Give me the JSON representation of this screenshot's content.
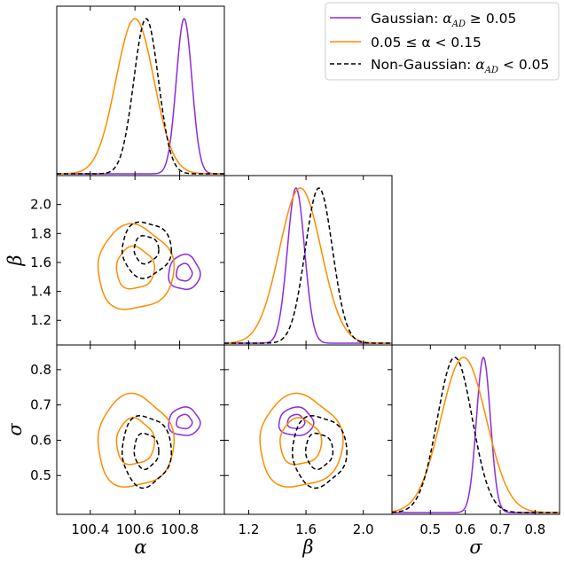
{
  "chart_data": {
    "type": "corner",
    "parameters": [
      "α",
      "β",
      "σ"
    ],
    "axes": {
      "alpha": {
        "label": "α",
        "range": [
          100.25,
          101.0
        ],
        "ticks": [
          100.4,
          100.6,
          100.8
        ],
        "tick_labels": [
          "100.4",
          "100.6",
          "100.8"
        ]
      },
      "beta": {
        "label": "β",
        "range": [
          1.03,
          2.2
        ],
        "ticks": [
          1.2,
          1.6,
          2.0
        ],
        "tick_labels": [
          "1.2",
          "1.6",
          "2.0"
        ],
        "y_ticks": [
          1.2,
          1.4,
          1.6,
          1.8,
          2.0
        ],
        "y_tick_labels": [
          "1.2",
          "1.4",
          "1.6",
          "1.8",
          "2.0"
        ]
      },
      "sigma": {
        "label": "σ",
        "range": [
          0.39,
          0.87
        ],
        "ticks": [
          0.5,
          0.6,
          0.7,
          0.8
        ],
        "tick_labels": [
          "0.5",
          "0.6",
          "0.7",
          "0.8"
        ]
      }
    },
    "legend": {
      "placement": "top-right",
      "entries": [
        {
          "key": "gaussian",
          "prefix": "Gaussian: ",
          "sym": "α",
          "sub": "AD",
          "rel": " ≥ ",
          "num": "0.05"
        },
        {
          "key": "mid",
          "text": "0.05 ≤ α < 0.15"
        },
        {
          "key": "nongaussian",
          "prefix": "Non-Gaussian: ",
          "sym": "α",
          "sub": "AD",
          "rel": " < ",
          "num": "0.05"
        }
      ]
    },
    "series": [
      {
        "key": "gaussian",
        "color": "#8a2be2",
        "dash": false,
        "mean": {
          "alpha": 100.82,
          "beta": 1.53,
          "sigma": 0.652
        },
        "sd": {
          "alpha": 0.035,
          "beta": 0.06,
          "sigma": 0.02
        }
      },
      {
        "key": "mid",
        "color": "#ff8c00",
        "dash": false,
        "mean": {
          "alpha": 100.6,
          "beta": 1.56,
          "sigma": 0.595
        },
        "sd": {
          "alpha": 0.085,
          "beta": 0.145,
          "sigma": 0.065
        }
      },
      {
        "key": "nongaussian",
        "color": "#000000",
        "dash": true,
        "mean": {
          "alpha": 100.65,
          "beta": 1.69,
          "sigma": 0.57
        },
        "sd": {
          "alpha": 0.055,
          "beta": 0.095,
          "sigma": 0.05
        }
      }
    ]
  }
}
